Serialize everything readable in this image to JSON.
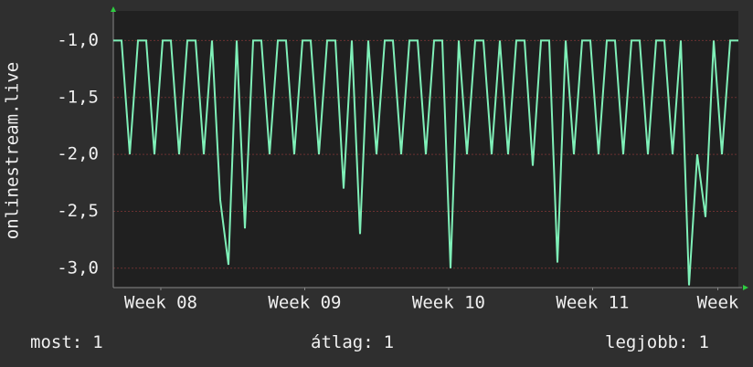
{
  "chart_data": {
    "type": "line",
    "y_label": "onlinestream.live",
    "x": [
      0,
      0.4,
      0.8,
      1.2,
      1.6,
      2,
      2.4,
      2.8,
      3.2,
      3.6,
      4,
      4.4,
      4.8,
      5.2,
      5.6,
      6,
      6.4,
      6.8,
      7.2,
      7.6,
      8,
      8.4,
      8.8,
      9.2,
      9.6,
      10,
      10.4,
      10.8,
      11.2,
      11.6,
      12,
      12.4,
      12.8,
      13.2,
      13.6,
      14,
      14.4,
      14.8,
      15.2,
      15.6,
      16,
      16.4,
      16.8,
      17.2,
      17.6,
      18,
      18.4,
      18.8,
      19.2,
      19.6,
      20,
      20.4,
      20.8,
      21.2,
      21.6,
      22,
      22.4,
      22.8,
      23.2,
      23.6,
      24,
      24.4,
      24.8,
      25.2,
      25.6,
      26,
      26.4,
      26.8,
      27.2,
      27.6,
      28,
      28.4,
      28.8,
      29.2,
      29.6,
      30,
      30.4
    ],
    "series": [
      {
        "color": "#7ff0b8",
        "values": [
          -1,
          -1,
          -2,
          -1,
          -1,
          -2,
          -1,
          -1,
          -2,
          -1,
          -1,
          -2,
          -1,
          -2.4,
          -2.97,
          -1,
          -2.65,
          -1,
          -1,
          -2,
          -1,
          -1,
          -2,
          -1,
          -1,
          -2,
          -1,
          -1,
          -2.3,
          -1,
          -2.7,
          -1,
          -2,
          -1,
          -1,
          -2,
          -1,
          -1,
          -2,
          -1,
          -1,
          -3,
          -1,
          -2,
          -1,
          -1,
          -2,
          -1,
          -2,
          -1,
          -1,
          -2.1,
          -1,
          -1,
          -2.95,
          -1,
          -2,
          -1,
          -1,
          -2,
          -1,
          -1,
          -2,
          -1,
          -1,
          -2,
          -1,
          -1,
          -2,
          -1,
          -3.15,
          -2,
          -2.55,
          -1,
          -2,
          -1,
          -1
        ]
      }
    ],
    "xlim": [
      0,
      30.4
    ],
    "xticks": [
      {
        "value": 2.31,
        "label": "Week 08"
      },
      {
        "value": 9.31,
        "label": "Week 09"
      },
      {
        "value": 16.31,
        "label": "Week 10"
      },
      {
        "value": 23.31,
        "label": "Week 11"
      },
      {
        "value": 29.4,
        "label": "Week"
      }
    ],
    "ylim": [
      -3.17,
      -0.74
    ],
    "yticks": [
      {
        "value": -1,
        "label": "-1,0"
      },
      {
        "value": -1.5,
        "label": "-1,5"
      },
      {
        "value": -2,
        "label": "-2,0"
      },
      {
        "value": -2.5,
        "label": "-2,5"
      },
      {
        "value": -3,
        "label": "-3,0"
      }
    ],
    "grid": true
  },
  "stats": [
    {
      "label": "most:",
      "value": 1
    },
    {
      "label": "átlag:",
      "value": 1
    },
    {
      "label": "legjobb:",
      "value": 1
    }
  ]
}
